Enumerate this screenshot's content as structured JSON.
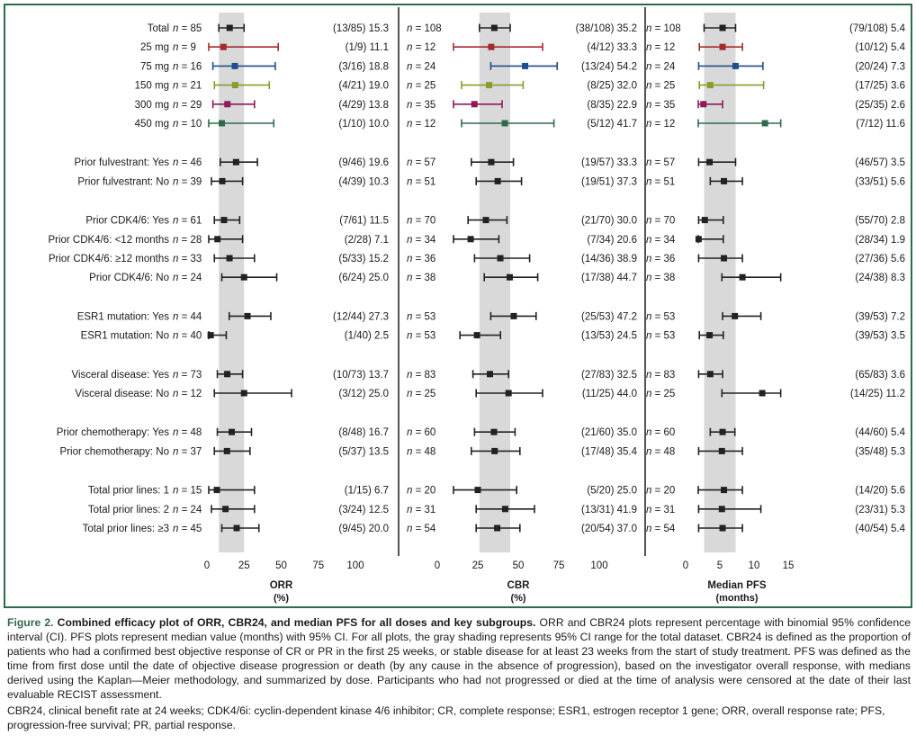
{
  "figure": {
    "rows": [
      {
        "label": "Total",
        "color": "#222222"
      },
      {
        "label": "25 mg",
        "color": "#a52a2a"
      },
      {
        "label": "75 mg",
        "color": "#1f4e8c"
      },
      {
        "label": "150 mg",
        "color": "#8c9a2b"
      },
      {
        "label": "300 mg",
        "color": "#8e1a5a"
      },
      {
        "label": "450 mg",
        "color": "#2f6b4b"
      },
      {
        "label": "Prior fulvestrant: Yes",
        "color": "#222222"
      },
      {
        "label": "Prior fulvestrant: No",
        "color": "#222222"
      },
      {
        "label": "Prior CDK4/6: Yes",
        "color": "#222222"
      },
      {
        "label": "Prior CDK4/6: <12 months",
        "color": "#222222"
      },
      {
        "label": "Prior CDK4/6: ≥12 months",
        "color": "#222222"
      },
      {
        "label": "Prior CDK4/6: No",
        "color": "#222222"
      },
      {
        "label": "ESR1 mutation: Yes",
        "color": "#222222"
      },
      {
        "label": "ESR1 mutation: No",
        "color": "#222222"
      },
      {
        "label": "Visceral disease: Yes",
        "color": "#222222"
      },
      {
        "label": "Visceral disease: No",
        "color": "#222222"
      },
      {
        "label": "Prior chemotherapy: Yes",
        "color": "#222222"
      },
      {
        "label": "Prior chemotherapy: No",
        "color": "#222222"
      },
      {
        "label": "Total prior lines: 1",
        "color": "#222222"
      },
      {
        "label": "Total prior lines: 2",
        "color": "#222222"
      },
      {
        "label": "Total prior lines: ≥3",
        "color": "#222222"
      }
    ],
    "caption": {
      "label": "Figure 2.",
      "title": "Combined efficacy plot of ORR, CBR24, and median PFS for all doses and key subgroups.",
      "body": "ORR and CBR24 plots represent percentage with binomial 95% confidence interval (CI). PFS plots represent median value (months) with 95% CI. For all plots, the gray shading represents 95% CI range for the total dataset. CBR24 is defined as the proportion of patients who had a confirmed best objective response of CR or PR in the first 25 weeks, or stable disease for at least 23 weeks from the start of study treatment. PFS was defined as the time from first dose until the date of objective disease progression or death (by any cause in the absence of progression), based on the investigator overall response, with medians derived using the Kaplan—Meier methodology, and summarized by dose. Participants who had not progressed or died at the time of analysis were censored at the date of their last evaluable RECIST assessment.",
      "abbreviations": "CBR24, clinical benefit rate at 24 weeks; CDK4/6i: cyclin-dependent kinase 4/6 inhibitor; CR, complete response; ESR1, estrogen receptor 1 gene; ORR, overall response rate; PFS, progression-free survival; PR, partial response."
    }
  },
  "chart_data": [
    {
      "type": "forest",
      "title": "ORR (%)",
      "xlabel": "ORR",
      "xunit": "(%)",
      "xlim": [
        0,
        100
      ],
      "ticks": [
        0,
        25,
        50,
        75,
        100
      ],
      "shade": [
        8,
        25
      ],
      "n": [
        "85",
        "9",
        "16",
        "21",
        "29",
        "10",
        "46",
        "39",
        "61",
        "28",
        "33",
        "24",
        "44",
        "40",
        "73",
        "12",
        "48",
        "37",
        "15",
        "24",
        "45"
      ],
      "stat": [
        "(13/85) 15.3",
        "(1/9) 11.1",
        "(3/16) 18.8",
        "(4/21) 19.0",
        "(4/29) 13.8",
        "(1/10) 10.0",
        "(9/46) 19.6",
        "(4/39) 10.3",
        "(7/61) 11.5",
        "(2/28) 7.1",
        "(5/33) 15.2",
        "(6/24) 25.0",
        "(12/44) 27.3",
        "(1/40) 2.5",
        "(10/73) 13.7",
        "(3/12) 25.0",
        "(8/48) 16.7",
        "(5/37) 13.5",
        "(1/15) 6.7",
        "(3/24) 12.5",
        "(9/45) 20.0"
      ],
      "values": [
        15.3,
        11.1,
        18.8,
        19.0,
        13.8,
        10.0,
        19.6,
        10.3,
        11.5,
        7.1,
        15.2,
        25.0,
        27.3,
        2.5,
        13.7,
        25.0,
        16.7,
        13.5,
        6.7,
        12.5,
        20.0
      ],
      "lo": [
        8,
        0,
        4,
        5,
        4,
        0,
        9,
        3,
        5,
        1,
        5,
        10,
        15,
        0,
        7,
        5,
        7,
        5,
        0,
        3,
        10
      ],
      "hi": [
        25,
        48,
        46,
        42,
        32,
        45,
        34,
        24,
        22,
        24,
        32,
        47,
        43,
        13,
        24,
        57,
        30,
        29,
        32,
        32,
        35
      ]
    },
    {
      "type": "forest",
      "title": "CBR (%)",
      "xlabel": "CBR",
      "xunit": "(%)",
      "xlim": [
        0,
        100
      ],
      "ticks": [
        0,
        25,
        50,
        75,
        100
      ],
      "shade": [
        26,
        45
      ],
      "n": [
        "108",
        "12",
        "24",
        "25",
        "35",
        "12",
        "57",
        "51",
        "70",
        "34",
        "36",
        "38",
        "53",
        "53",
        "83",
        "25",
        "60",
        "48",
        "20",
        "31",
        "54"
      ],
      "stat": [
        "(38/108) 35.2",
        "(4/12) 33.3",
        "(13/24) 54.2",
        "(8/25) 32.0",
        "(8/35) 22.9",
        "(5/12) 41.7",
        "(19/57) 33.3",
        "(19/51) 37.3",
        "(21/70) 30.0",
        "(7/34) 20.6",
        "(14/36) 38.9",
        "(17/38) 44.7",
        "(25/53) 47.2",
        "(13/53) 24.5",
        "(27/83) 32.5",
        "(11/25) 44.0",
        "(21/60) 35.0",
        "(17/48) 35.4",
        "(5/20) 25.0",
        "(13/31) 41.9",
        "(20/54) 37.0"
      ],
      "values": [
        35.2,
        33.3,
        54.2,
        32.0,
        22.9,
        41.7,
        33.3,
        37.3,
        30.0,
        20.6,
        38.9,
        44.7,
        47.2,
        24.5,
        32.5,
        44.0,
        35.0,
        35.4,
        25.0,
        41.9,
        37.0
      ],
      "lo": [
        26,
        10,
        33,
        15,
        10,
        15,
        21,
        24,
        19,
        9,
        23,
        29,
        33,
        14,
        22,
        24,
        23,
        21,
        9,
        24,
        24
      ],
      "hi": [
        45,
        65,
        74,
        53,
        40,
        72,
        47,
        52,
        43,
        38,
        57,
        62,
        61,
        39,
        44,
        65,
        48,
        51,
        49,
        60,
        51
      ]
    },
    {
      "type": "forest",
      "title": "Median PFS (months)",
      "xlabel": "Median PFS",
      "xunit": "(months)",
      "xlim": [
        0,
        15
      ],
      "ticks": [
        0,
        5,
        10,
        15
      ],
      "shade": [
        2.7,
        7.3
      ],
      "n": [
        "108",
        "12",
        "24",
        "25",
        "35",
        "12",
        "57",
        "51",
        "70",
        "34",
        "36",
        "38",
        "53",
        "53",
        "83",
        "25",
        "60",
        "48",
        "20",
        "31",
        "54"
      ],
      "stat": [
        "(79/108) 5.4",
        "(10/12) 5.4",
        "(20/24) 7.3",
        "(17/25) 3.6",
        "(25/35) 2.6",
        "(7/12) 11.6",
        "(46/57) 3.5",
        "(33/51) 5.6",
        "(55/70) 2.8",
        "(28/34) 1.9",
        "(27/36) 5.6",
        "(24/38) 8.3",
        "(39/53) 7.2",
        "(39/53) 3.5",
        "(65/83) 3.6",
        "(14/25) 11.2",
        "(44/60) 5.4",
        "(35/48) 5.3",
        "(14/20) 5.6",
        "(23/31) 5.3",
        "(40/54) 5.4"
      ],
      "values": [
        5.4,
        5.4,
        7.3,
        3.6,
        2.6,
        11.6,
        3.5,
        5.6,
        2.8,
        1.9,
        5.6,
        8.3,
        7.2,
        3.5,
        3.6,
        11.2,
        5.4,
        5.3,
        5.6,
        5.3,
        5.4
      ],
      "lo": [
        2.7,
        2.0,
        1.9,
        2.0,
        1.8,
        1.8,
        1.9,
        3.6,
        1.9,
        1.8,
        1.9,
        5.3,
        5.4,
        2.0,
        1.9,
        5.3,
        3.6,
        1.9,
        1.8,
        1.9,
        1.9
      ],
      "hi": [
        7.3,
        8.3,
        11.3,
        11.4,
        5.4,
        13.9,
        7.3,
        8.3,
        5.5,
        5.5,
        8.3,
        13.9,
        11.0,
        5.5,
        5.4,
        13.9,
        7.2,
        8.3,
        8.3,
        11.0,
        8.3
      ]
    }
  ]
}
